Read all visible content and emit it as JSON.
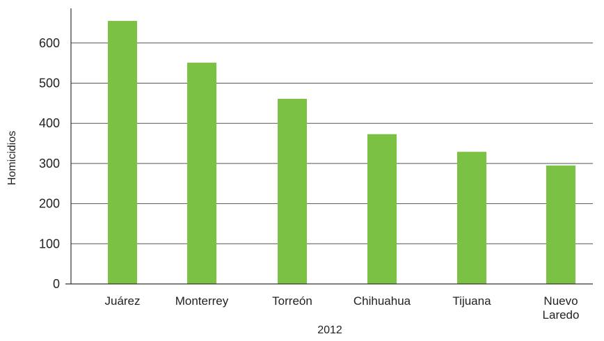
{
  "chart_data": {
    "type": "bar",
    "title": "",
    "xlabel": "2012",
    "ylabel": "Homicidios",
    "categories": [
      "Juárez",
      "Monterrey",
      "Torreón",
      "Chihuahua",
      "Tijuana",
      "Nuevo Laredo"
    ],
    "category_lines": [
      [
        "Juárez"
      ],
      [
        "Monterrey"
      ],
      [
        "Torreón"
      ],
      [
        "Chihuahua"
      ],
      [
        "Tijuana"
      ],
      [
        "Nuevo",
        "Laredo"
      ]
    ],
    "values": [
      655,
      551,
      461,
      373,
      329,
      295
    ],
    "ylim": [
      0,
      700
    ],
    "yticks": [
      0,
      100,
      200,
      300,
      400,
      500,
      600
    ],
    "grid": true,
    "bar_color": "#7bc143",
    "grid_color": "#555555",
    "axis_color": "#333333"
  }
}
